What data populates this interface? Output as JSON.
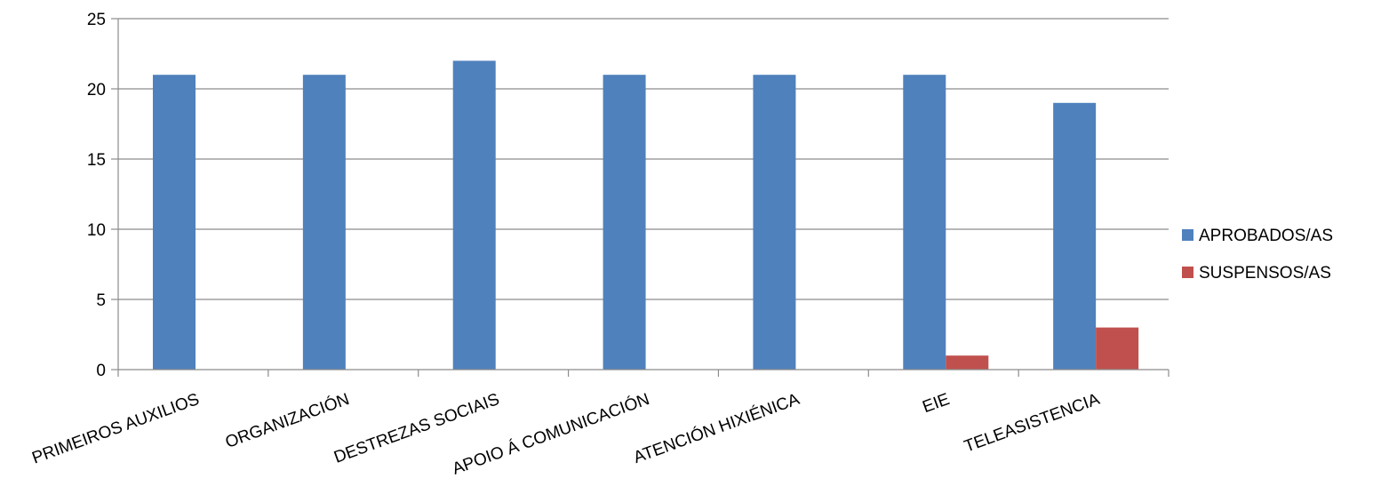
{
  "chart_data": {
    "type": "bar",
    "categories": [
      "PRIMEIROS AUXILIOS",
      "ORGANIZACIÓN",
      "DESTREZAS SOCIAIS",
      "APOIO Á COMUNICACIÓN",
      "ATENCIÓN HIXIÉNICA",
      "EIE",
      "TELEASISTENCIA"
    ],
    "series": [
      {
        "name": "APROBADOS/AS",
        "color": "#4F81BD",
        "values": [
          21,
          21,
          22,
          21,
          21,
          21,
          19
        ]
      },
      {
        "name": "SUSPENSOS/AS",
        "color": "#C0504D",
        "values": [
          0,
          0,
          0,
          0,
          0,
          1,
          3
        ]
      }
    ],
    "title": "",
    "xlabel": "",
    "ylabel": "",
    "ylim": [
      0,
      25
    ],
    "yticks": [
      0,
      5,
      10,
      15,
      20,
      25
    ],
    "grid": true,
    "legend_position": "right"
  }
}
